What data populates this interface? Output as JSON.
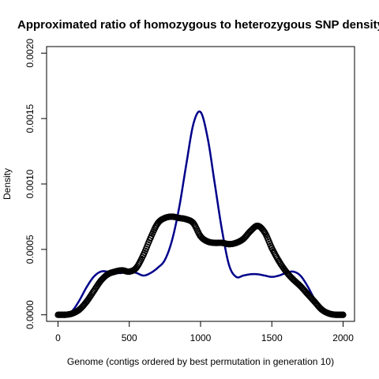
{
  "chart_data": {
    "type": "line",
    "title": "Approximated ratio of homozygous to heterozygous SNP density",
    "xlabel": "Genome (contigs ordered by best permutation in generation 10)",
    "ylabel": "Density",
    "xlim": [
      -80,
      2080
    ],
    "ylim": [
      -5e-05,
      0.00205
    ],
    "x_ticks": [
      0,
      500,
      1000,
      1500,
      2000
    ],
    "x_tick_labels": [
      "0",
      "500",
      "1000",
      "1500",
      "2000"
    ],
    "y_ticks": [
      0.0,
      0.0005,
      0.001,
      0.0015,
      0.002
    ],
    "y_tick_labels": [
      "0.0000",
      "0.0005",
      "0.0010",
      "0.0015",
      "0.0020"
    ],
    "grid": false,
    "legend": "none",
    "series": [
      {
        "style": "line",
        "color": "#00008b",
        "x": [
          0,
          60,
          100,
          150,
          200,
          250,
          300,
          350,
          400,
          450,
          500,
          550,
          600,
          650,
          700,
          750,
          800,
          850,
          900,
          950,
          1000,
          1050,
          1100,
          1150,
          1200,
          1250,
          1300,
          1350,
          1400,
          1450,
          1500,
          1550,
          1600,
          1650,
          1700,
          1750,
          1800,
          1850,
          1900,
          1950,
          2000
        ],
        "values": [
          0.0,
          1e-05,
          3e-05,
          0.00011,
          0.00021,
          0.00029,
          0.00033,
          0.00033,
          0.00032,
          0.00032,
          0.00033,
          0.00032,
          0.0003,
          0.00032,
          0.00036,
          0.00042,
          0.00057,
          0.00082,
          0.00115,
          0.00146,
          0.00155,
          0.00135,
          0.001,
          0.00065,
          0.00038,
          0.00029,
          0.0003,
          0.00031,
          0.00031,
          0.0003,
          0.00029,
          0.0003,
          0.00032,
          0.00033,
          0.0003,
          0.00022,
          0.00012,
          5e-05,
          1e-05,
          0.0,
          0.0
        ]
      },
      {
        "style": "points",
        "color": "#000000",
        "x": [
          0,
          50,
          100,
          150,
          200,
          250,
          300,
          350,
          400,
          450,
          500,
          550,
          600,
          650,
          700,
          750,
          800,
          850,
          900,
          950,
          1000,
          1050,
          1100,
          1150,
          1200,
          1250,
          1300,
          1350,
          1400,
          1450,
          1500,
          1550,
          1600,
          1650,
          1700,
          1750,
          1800,
          1850,
          1900,
          1950,
          2000
        ],
        "values": [
          0.0,
          0.0,
          1e-05,
          4e-05,
          0.0001,
          0.00018,
          0.00026,
          0.00031,
          0.00033,
          0.00034,
          0.00033,
          0.00036,
          0.00046,
          0.00059,
          0.0007,
          0.00074,
          0.00075,
          0.00074,
          0.00073,
          0.0007,
          0.0006,
          0.00056,
          0.00055,
          0.00055,
          0.00054,
          0.00055,
          0.00058,
          0.00064,
          0.00068,
          0.00063,
          0.00051,
          0.00041,
          0.00033,
          0.00027,
          0.00022,
          0.00016,
          0.0001,
          4e-05,
          1e-05,
          0.0,
          0.0
        ]
      }
    ]
  }
}
